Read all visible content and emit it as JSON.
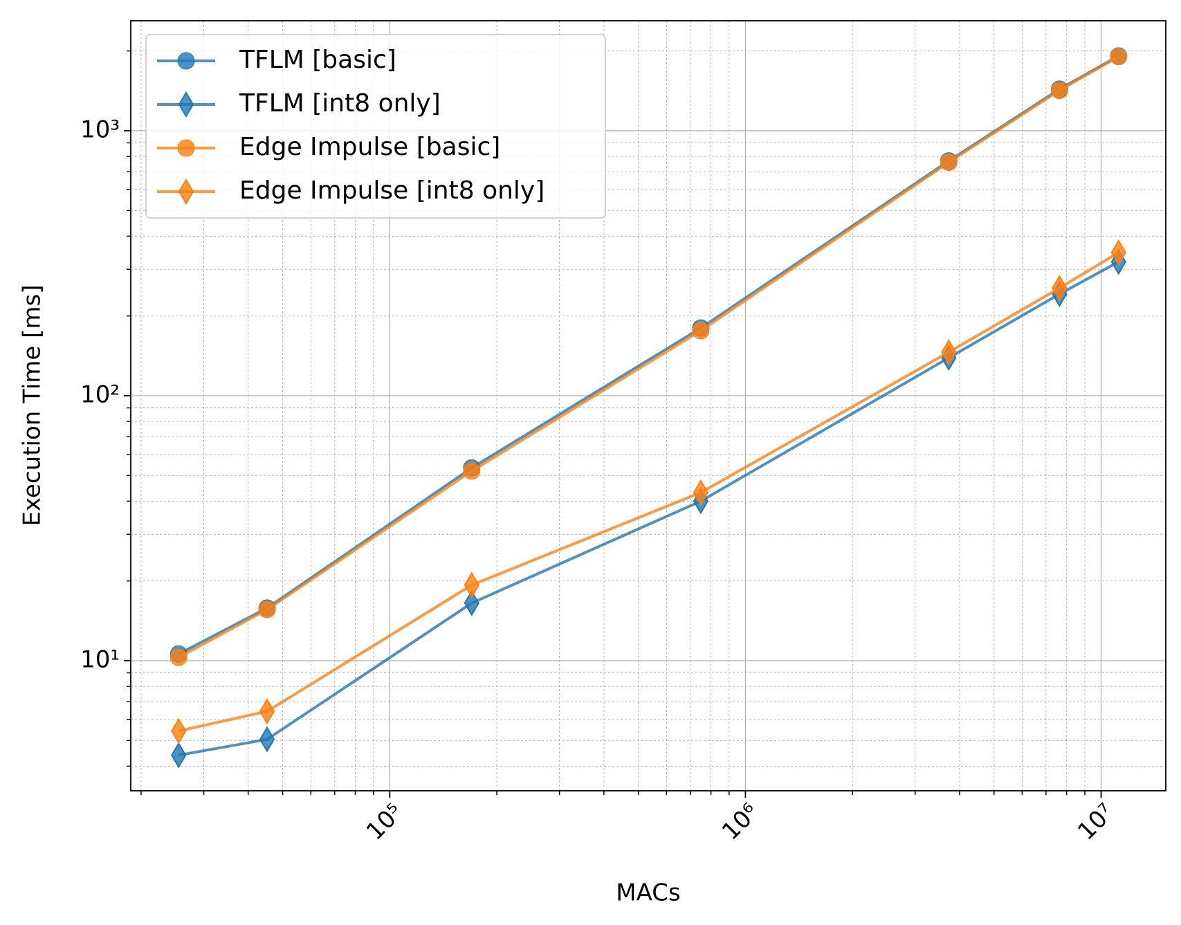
{
  "chart_data": {
    "type": "line",
    "x_label": "MACs",
    "y_label": "Execution Time [ms]",
    "xscale": "log",
    "yscale": "log",
    "grid": true,
    "legend": "upper left",
    "x": [
      25500,
      45200,
      170000,
      749000,
      3730000,
      7640000,
      11200000
    ],
    "series": [
      {
        "name": "TFLM [basic]",
        "color": "#1f77b4",
        "marker": "circle",
        "values": [
          10.6,
          15.8,
          53.4,
          180,
          769,
          1435,
          1915
        ]
      },
      {
        "name": "TFLM [int8 only]",
        "color": "#1f77b4",
        "marker": "diamond",
        "values": [
          4.4,
          5.05,
          16.5,
          40,
          139,
          242,
          320
        ]
      },
      {
        "name": "Edge Impulse [basic]",
        "color": "#ff7f0e",
        "marker": "circle",
        "values": [
          10.3,
          15.6,
          52,
          176,
          760,
          1420,
          1905
        ]
      },
      {
        "name": "Edge Impulse [int8 only]",
        "color": "#ff7f0e",
        "marker": "diamond",
        "values": [
          5.43,
          6.44,
          19.3,
          43.1,
          146,
          255,
          347
        ]
      }
    ],
    "xlim": [
      18700,
      15200000
    ],
    "ylim": [
      3.23,
      2600
    ],
    "xticks": [
      {
        "value": 100000,
        "label": "10⁵"
      },
      {
        "value": 1000000,
        "label": "10⁶"
      },
      {
        "value": 10000000,
        "label": "10⁷"
      }
    ],
    "yticks": [
      {
        "value": 10,
        "label": "10¹"
      },
      {
        "value": 100,
        "label": "10²"
      },
      {
        "value": 1000,
        "label": "10³"
      }
    ],
    "xminorticks": [
      20000,
      30000,
      40000,
      50000,
      60000,
      70000,
      80000,
      90000,
      200000,
      300000,
      400000,
      500000,
      600000,
      700000,
      800000,
      900000,
      2000000,
      3000000,
      4000000,
      5000000,
      6000000,
      7000000,
      8000000,
      9000000
    ],
    "yminorticks": [
      4,
      5,
      6,
      7,
      8,
      9,
      20,
      30,
      40,
      50,
      60,
      70,
      80,
      90,
      200,
      300,
      400,
      500,
      600,
      700,
      800,
      900,
      2000
    ]
  }
}
